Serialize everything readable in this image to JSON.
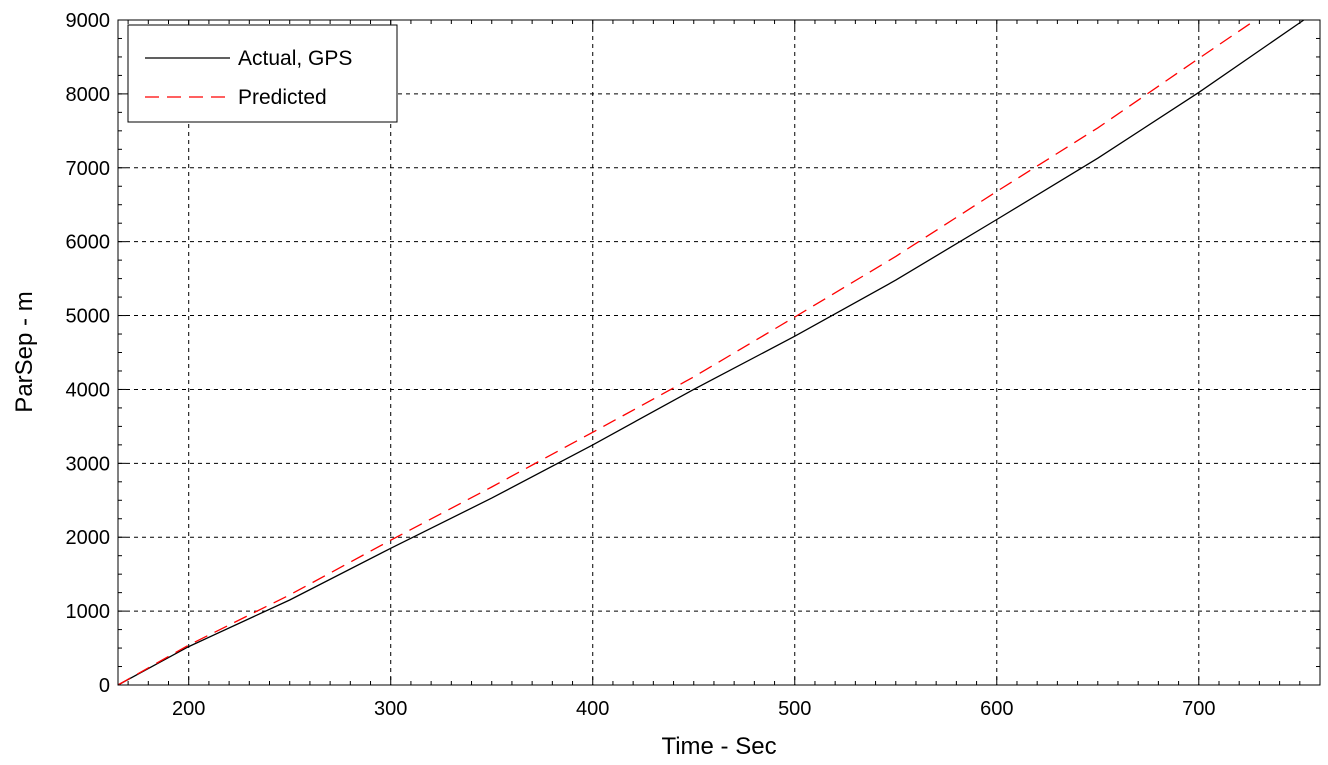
{
  "chart_data": {
    "type": "line",
    "title": "",
    "xlabel": "Time - Sec",
    "ylabel": "ParSep - m",
    "xlim": [
      165,
      760
    ],
    "ylim": [
      0,
      9000
    ],
    "x_ticks": [
      200,
      300,
      400,
      500,
      600,
      700
    ],
    "y_ticks": [
      0,
      1000,
      2000,
      3000,
      4000,
      5000,
      6000,
      7000,
      8000,
      9000
    ],
    "grid": true,
    "legend_position": "top-left",
    "series": [
      {
        "name": "Actual, GPS",
        "color": "#000000",
        "style": "solid",
        "x": [
          165,
          200,
          250,
          300,
          350,
          400,
          450,
          500,
          550,
          600,
          650,
          700,
          752
        ],
        "y": [
          0,
          520,
          1150,
          1850,
          2530,
          3250,
          4000,
          4720,
          5480,
          6300,
          7130,
          8020,
          9000
        ]
      },
      {
        "name": "Predicted",
        "color": "#ff0000",
        "style": "dashed",
        "x": [
          165,
          200,
          250,
          300,
          350,
          400,
          450,
          500,
          550,
          600,
          650,
          700,
          728
        ],
        "y": [
          0,
          540,
          1220,
          1960,
          2680,
          3420,
          4170,
          4980,
          5800,
          6680,
          7540,
          8480,
          9000
        ]
      }
    ]
  }
}
